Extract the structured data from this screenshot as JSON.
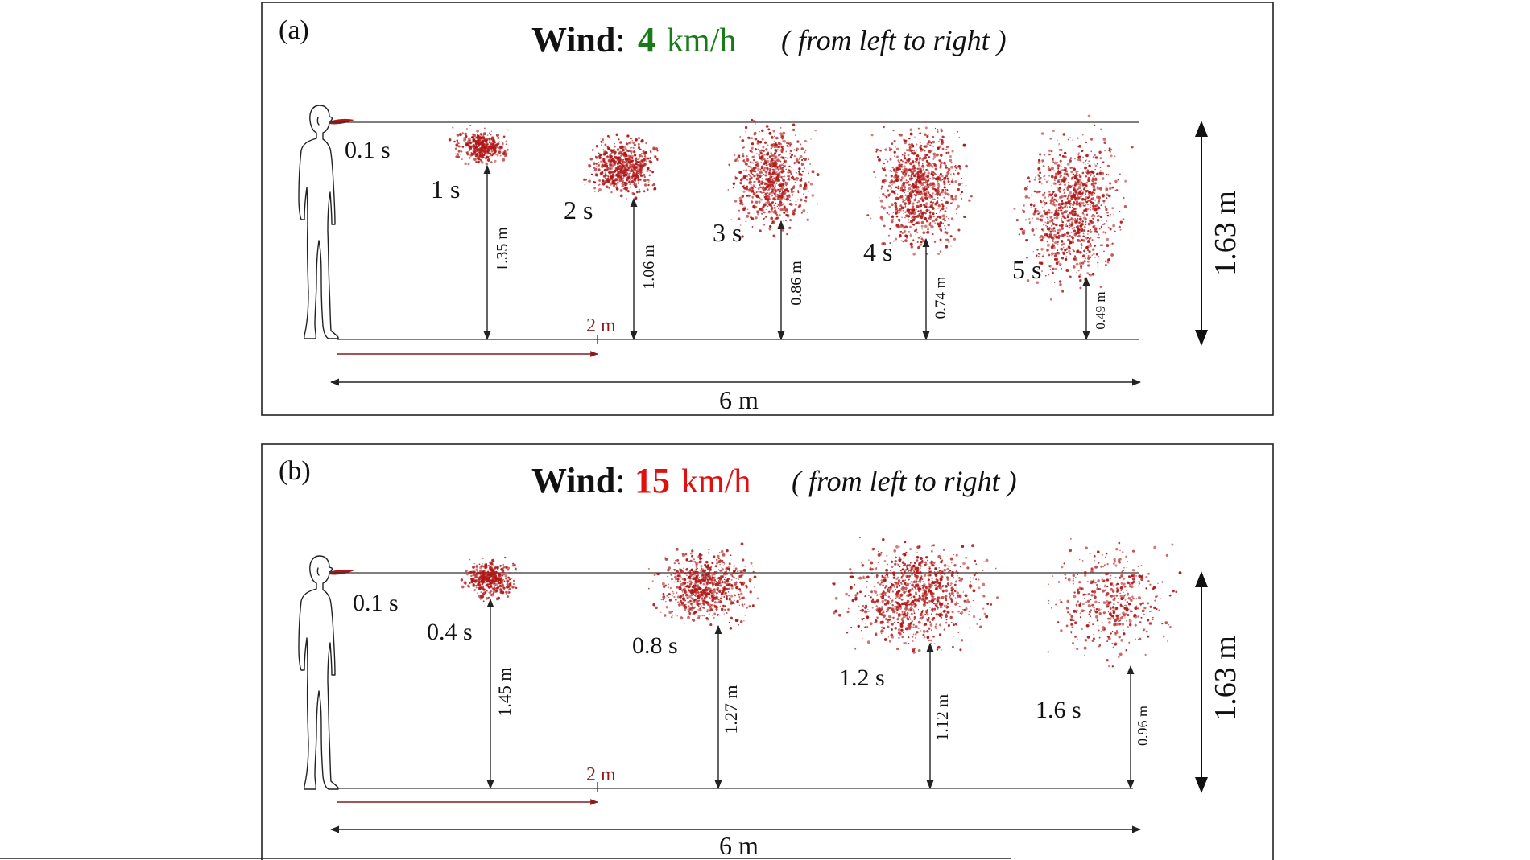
{
  "panels": [
    {
      "label": "(a)",
      "wind_word": "Wind",
      "wind_colon": ":",
      "wind_speed": "4",
      "wind_unit": "km/h",
      "wind_color": "#1a7a1a",
      "direction": "( from left to right )",
      "emit_time": "0.1 s",
      "two_m_label": "2 m",
      "width_label": "6 m",
      "height_label": "1.63 m",
      "clouds": [
        {
          "time": "1 s",
          "height": "1.35 m"
        },
        {
          "time": "2 s",
          "height": "1.06 m"
        },
        {
          "time": "3 s",
          "height": "0.86 m"
        },
        {
          "time": "4 s",
          "height": "0.74 m"
        },
        {
          "time": "5 s",
          "height": "0.49 m"
        }
      ]
    },
    {
      "label": "(b)",
      "wind_word": "Wind",
      "wind_colon": ":",
      "wind_speed": "15",
      "wind_unit": "km/h",
      "wind_color": "#e01010",
      "direction": "( from left to right )",
      "emit_time": "0.1 s",
      "two_m_label": "2 m",
      "width_label": "6 m",
      "height_label": "1.63 m",
      "clouds": [
        {
          "time": "0.4 s",
          "height": "1.45 m"
        },
        {
          "time": "0.8 s",
          "height": "1.27 m"
        },
        {
          "time": "1.2 s",
          "height": "1.12 m"
        },
        {
          "time": "1.6 s",
          "height": "0.96 m"
        }
      ]
    }
  ],
  "colors": {
    "droplet": "#b01818",
    "distance_marker": "#8b1a1a",
    "line": "#222222"
  }
}
